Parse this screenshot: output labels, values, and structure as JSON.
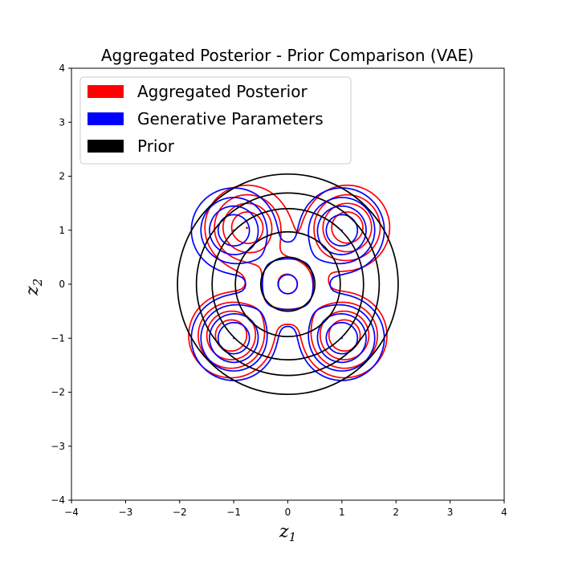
{
  "colors": {
    "posterior": "#ff0000",
    "generative": "#0000ff",
    "prior": "#000000"
  },
  "chart_data": {
    "type": "contour",
    "title": "Aggregated Posterior - Prior Comparison (VAE)",
    "xlabel": "z",
    "xlabel_sub": "1",
    "ylabel": "z",
    "ylabel_sub": "2",
    "xlim": [
      -4,
      4
    ],
    "ylim": [
      -4,
      4
    ],
    "xticks": [
      -4,
      -3,
      -2,
      -1,
      0,
      1,
      2,
      3,
      4
    ],
    "yticks": [
      -4,
      -3,
      -2,
      -1,
      0,
      1,
      2,
      3,
      4
    ],
    "tick_labels_x": [
      "−4",
      "−3",
      "−2",
      "−1",
      "0",
      "1",
      "2",
      "3",
      "4"
    ],
    "tick_labels_y": [
      "−4",
      "−3",
      "−2",
      "−1",
      "0",
      "1",
      "2",
      "3",
      "4"
    ],
    "grid": false,
    "legend_position": "upper-left",
    "series": [
      {
        "name": "Aggregated Posterior",
        "color": "#ff0000",
        "kind": "mixture",
        "centers": [
          [
            -0.75,
            1.05
          ],
          [
            1.1,
            1.05
          ],
          [
            -1.05,
            -0.95
          ],
          [
            1.05,
            -0.95
          ],
          [
            0,
            0
          ]
        ],
        "sigma": 0.38,
        "weights": [
          1,
          1,
          1,
          1,
          0.55
        ],
        "levels": [
          0.12,
          0.28,
          0.5,
          0.75,
          1.0
        ]
      },
      {
        "name": "Generative Parameters",
        "color": "#0000ff",
        "kind": "mixture",
        "centers": [
          [
            -1.0,
            1.0
          ],
          [
            1.0,
            1.0
          ],
          [
            -1.0,
            -1.0
          ],
          [
            1.0,
            -1.0
          ],
          [
            0,
            0
          ]
        ],
        "sigma": 0.38,
        "weights": [
          1,
          1,
          1,
          1,
          0.55
        ],
        "levels": [
          0.12,
          0.28,
          0.5,
          0.75,
          1.0
        ]
      },
      {
        "name": "Prior",
        "color": "#000000",
        "kind": "circles",
        "center": [
          0,
          0
        ],
        "radii": [
          0.5,
          0.97,
          1.4,
          1.69,
          2.04
        ]
      }
    ]
  }
}
